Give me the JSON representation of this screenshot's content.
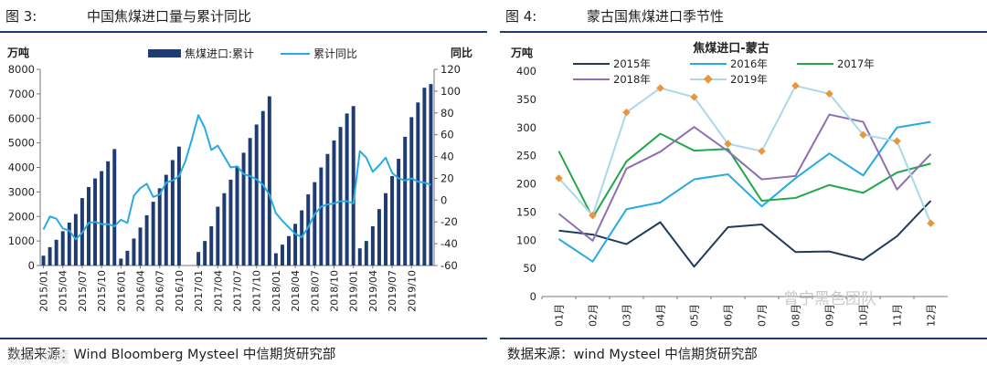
{
  "left": {
    "figure_label": "图 3:",
    "figure_title": "中国焦煤进口量与累计同比",
    "source": "数据来源：Wind Bloomberg Mysteel 中信期货研究部"
  },
  "right": {
    "figure_label": "图 4:",
    "figure_title": "蒙古国焦煤进口季节性",
    "source": "数据来源：wind Mysteel 中信期货研究部"
  },
  "watermarks": {
    "left_bottom": "铁矿钢魔",
    "right_bottom": "曾宁黑色团队"
  },
  "colors": {
    "rule": "#1f3b73",
    "bar": "#1f3b73",
    "line_yoy": "#29abe2"
  },
  "chart_data": [
    {
      "type": "bar",
      "title": "中国焦煤进口量与累计同比",
      "ylabel": "万吨",
      "y2label": "同比",
      "ylim": [
        0,
        8000
      ],
      "y2lim": [
        -60,
        120
      ],
      "yticks": [
        "0",
        "1000",
        "2000",
        "3000",
        "4000",
        "5000",
        "6000",
        "7000",
        "8000"
      ],
      "y2ticks": [
        "-60",
        "-40",
        "-20",
        "0",
        "20",
        "40",
        "60",
        "80",
        "100",
        "120"
      ],
      "xtick_labels": [
        "2015/01",
        "2015/04",
        "2015/07",
        "2015/10",
        "2016/01",
        "2016/04",
        "2016/07",
        "2016/10",
        "2017/01",
        "2017/04",
        "2017/07",
        "2017/10",
        "2018/01",
        "2018/04",
        "2018/07",
        "2018/10",
        "2019/01",
        "2019/04",
        "2019/07",
        "2019/10"
      ],
      "legend": [
        "焦煤进口:累计",
        "累计同比"
      ],
      "series": [
        {
          "name": "焦煤进口:累计",
          "kind": "bar",
          "axis": "left",
          "values": [
            400,
            750,
            1050,
            1400,
            1750,
            2100,
            2750,
            3200,
            3550,
            3850,
            4250,
            4750,
            280,
            600,
            1100,
            1550,
            2050,
            2600,
            3150,
            3700,
            4300,
            4850,
            null,
            null,
            550,
            1000,
            1600,
            2400,
            2950,
            3500,
            4050,
            4600,
            5200,
            5750,
            6300,
            6900,
            500,
            850,
            1200,
            1700,
            2250,
            2900,
            3400,
            4000,
            4550,
            5100,
            5650,
            6200,
            6500,
            700,
            1000,
            1600,
            2300,
            2950,
            3650,
            4350,
            5250,
            6050,
            6650,
            7250,
            7400
          ]
        },
        {
          "name": "累计同比",
          "kind": "line",
          "axis": "right",
          "values": [
            -27,
            -15,
            -17,
            -26,
            -28,
            -36,
            -30,
            -21,
            -20,
            -22,
            -22,
            -24,
            -18,
            -21,
            4,
            11,
            15,
            3,
            5,
            16,
            18,
            22,
            36,
            56,
            78,
            66,
            46,
            50,
            40,
            30,
            31,
            24,
            22,
            19,
            14,
            5,
            -12,
            -19,
            -25,
            -31,
            -34,
            -25,
            -13,
            -6,
            -4,
            -3,
            -1,
            -1,
            -3,
            45,
            39,
            26,
            32,
            39,
            25,
            20,
            18,
            20,
            17,
            16,
            14
          ]
        }
      ]
    },
    {
      "type": "line",
      "title": "焦煤进口-蒙古",
      "ylabel": "万吨",
      "ylim": [
        0,
        400
      ],
      "yticks": [
        "0",
        "50",
        "100",
        "150",
        "200",
        "250",
        "300",
        "350",
        "400"
      ],
      "categories": [
        "01月",
        "02月",
        "03月",
        "04月",
        "05月",
        "06月",
        "07月",
        "08月",
        "09月",
        "10月",
        "11月",
        "12月"
      ],
      "series": [
        {
          "name": "2015年",
          "color": "#1f3b5c",
          "values": [
            117,
            110,
            93,
            132,
            53,
            123,
            128,
            79,
            80,
            65,
            107,
            170
          ]
        },
        {
          "name": "2016年",
          "color": "#29abe2",
          "values": [
            102,
            62,
            155,
            167,
            208,
            217,
            160,
            210,
            254,
            215,
            300,
            310
          ]
        },
        {
          "name": "2017年",
          "color": "#20a84a",
          "values": [
            258,
            140,
            240,
            289,
            259,
            262,
            170,
            175,
            198,
            184,
            220,
            236
          ]
        },
        {
          "name": "2018年",
          "color": "#8e6fb0",
          "values": [
            147,
            99,
            227,
            257,
            301,
            258,
            208,
            214,
            323,
            310,
            190,
            253
          ]
        },
        {
          "name": "2019年",
          "color": "#a9d8ea",
          "marker_color": "#e9953a",
          "values": [
            210,
            144,
            327,
            370,
            354,
            271,
            258,
            374,
            360,
            287,
            276,
            130
          ]
        }
      ]
    }
  ]
}
